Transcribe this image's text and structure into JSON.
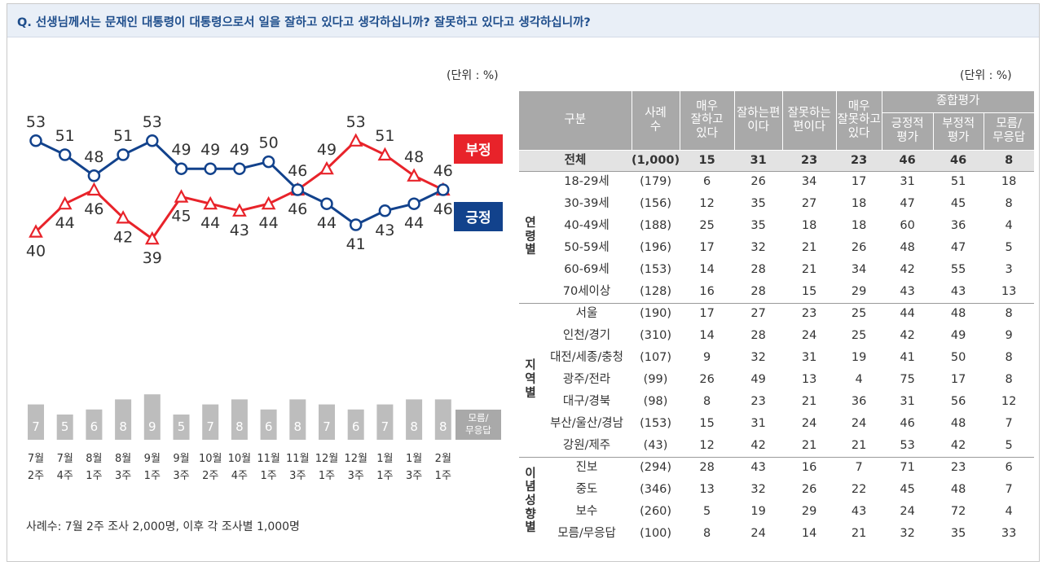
{
  "question": "Q. 선생님께서는 문재인 대통령이 대통령으로서 일을 잘하고 있다고 생각하십니까? 잘못하고 있다고 생각하십니까?",
  "unit_label": "(단위 : %)",
  "note": "사례수: 7월 2주 조사 2,000명, 이후 각 조사별 1,000명",
  "colors": {
    "negative": "#e8232a",
    "positive": "#12428c",
    "bar": "#bdbdbd",
    "header": "#a9a9a9"
  },
  "chart_data": {
    "type": "line",
    "x": [
      "7월 2주",
      "7월 4주",
      "8월 1주",
      "8월 3주",
      "9월 1주",
      "9월 3주",
      "10월 2주",
      "10월 4주",
      "11월 1주",
      "11월 3주",
      "12월 1주",
      "12월 3주",
      "1월 1주",
      "1월 3주",
      "2월 1주"
    ],
    "x_tick_lines": [
      [
        "7월",
        "2주"
      ],
      [
        "7월",
        "4주"
      ],
      [
        "8월",
        "1주"
      ],
      [
        "8월",
        "3주"
      ],
      [
        "9월",
        "1주"
      ],
      [
        "9월",
        "3주"
      ],
      [
        "10월",
        "2주"
      ],
      [
        "10월",
        "4주"
      ],
      [
        "11월",
        "1주"
      ],
      [
        "11월",
        "3주"
      ],
      [
        "12월",
        "1주"
      ],
      [
        "12월",
        "3주"
      ],
      [
        "1월",
        "1주"
      ],
      [
        "1월",
        "3주"
      ],
      [
        "2월",
        "1주"
      ]
    ],
    "series": [
      {
        "name": "부정",
        "marker": "triangle",
        "values": [
          40,
          44,
          46,
          42,
          39,
          45,
          44,
          43,
          44,
          46,
          49,
          53,
          51,
          48,
          46
        ]
      },
      {
        "name": "긍정",
        "marker": "circle",
        "values": [
          53,
          51,
          48,
          51,
          53,
          49,
          49,
          49,
          50,
          46,
          44,
          41,
          43,
          44,
          46
        ]
      }
    ],
    "bar_series": {
      "name": "모름/ 무응답",
      "name_lines": [
        "모름/",
        "무응답"
      ],
      "values": [
        7,
        5,
        6,
        8,
        9,
        5,
        7,
        8,
        6,
        8,
        7,
        6,
        7,
        8,
        8
      ]
    }
  },
  "table": {
    "headers": {
      "category": "구분",
      "sample": [
        "사례",
        "수"
      ],
      "very_good": [
        "매우",
        "잘하고",
        "있다"
      ],
      "good": [
        "잘하는편",
        "이다"
      ],
      "bad": [
        "잘못하는",
        "편이다"
      ],
      "very_bad": [
        "매우",
        "잘못하고",
        "있다"
      ],
      "summary": "종합평가",
      "positive": [
        "긍정적",
        "평가"
      ],
      "negative": [
        "부정적",
        "평가"
      ],
      "dk": [
        "모름/",
        "무응답"
      ]
    },
    "total": {
      "label": "전체",
      "values": [
        "(1,000)",
        "15",
        "31",
        "23",
        "23",
        "46",
        "46",
        "8"
      ]
    },
    "groups": [
      {
        "name": "연령별",
        "name_chars": [
          "연",
          "령",
          "별"
        ],
        "rows": [
          {
            "label": "18-29세",
            "values": [
              "(179)",
              "6",
              "26",
              "34",
              "17",
              "31",
              "51",
              "18"
            ]
          },
          {
            "label": "30-39세",
            "values": [
              "(156)",
              "12",
              "35",
              "27",
              "18",
              "47",
              "45",
              "8"
            ]
          },
          {
            "label": "40-49세",
            "values": [
              "(188)",
              "25",
              "35",
              "18",
              "18",
              "60",
              "36",
              "4"
            ]
          },
          {
            "label": "50-59세",
            "values": [
              "(196)",
              "17",
              "32",
              "21",
              "26",
              "48",
              "47",
              "5"
            ]
          },
          {
            "label": "60-69세",
            "values": [
              "(153)",
              "14",
              "28",
              "21",
              "34",
              "42",
              "55",
              "3"
            ]
          },
          {
            "label": "70세이상",
            "values": [
              "(128)",
              "16",
              "28",
              "15",
              "29",
              "43",
              "43",
              "13"
            ]
          }
        ]
      },
      {
        "name": "지역별",
        "name_chars": [
          "지",
          "역",
          "별"
        ],
        "rows": [
          {
            "label": "서울",
            "values": [
              "(190)",
              "17",
              "27",
              "23",
              "25",
              "44",
              "48",
              "8"
            ]
          },
          {
            "label": "인천/경기",
            "values": [
              "(310)",
              "14",
              "28",
              "24",
              "25",
              "42",
              "49",
              "9"
            ]
          },
          {
            "label": "대전/세종/충청",
            "values": [
              "(107)",
              "9",
              "32",
              "31",
              "19",
              "41",
              "50",
              "8"
            ]
          },
          {
            "label": "광주/전라",
            "values": [
              "(99)",
              "26",
              "49",
              "13",
              "4",
              "75",
              "17",
              "8"
            ]
          },
          {
            "label": "대구/경북",
            "values": [
              "(98)",
              "8",
              "23",
              "21",
              "36",
              "31",
              "56",
              "12"
            ]
          },
          {
            "label": "부산/울산/경남",
            "values": [
              "(153)",
              "15",
              "31",
              "24",
              "24",
              "46",
              "48",
              "7"
            ]
          },
          {
            "label": "강원/제주",
            "values": [
              "(43)",
              "12",
              "42",
              "21",
              "21",
              "53",
              "42",
              "5"
            ]
          }
        ]
      },
      {
        "name": "이념성향별",
        "name_chars": [
          "이",
          "념",
          "성",
          "향",
          "별"
        ],
        "rows": [
          {
            "label": "진보",
            "values": [
              "(294)",
              "28",
              "43",
              "16",
              "7",
              "71",
              "23",
              "6"
            ]
          },
          {
            "label": "중도",
            "values": [
              "(346)",
              "13",
              "32",
              "26",
              "22",
              "45",
              "48",
              "7"
            ]
          },
          {
            "label": "보수",
            "values": [
              "(260)",
              "5",
              "19",
              "29",
              "43",
              "24",
              "72",
              "4"
            ]
          },
          {
            "label": "모름/무응답",
            "values": [
              "(100)",
              "8",
              "24",
              "14",
              "21",
              "32",
              "35",
              "33"
            ]
          }
        ]
      }
    ]
  }
}
